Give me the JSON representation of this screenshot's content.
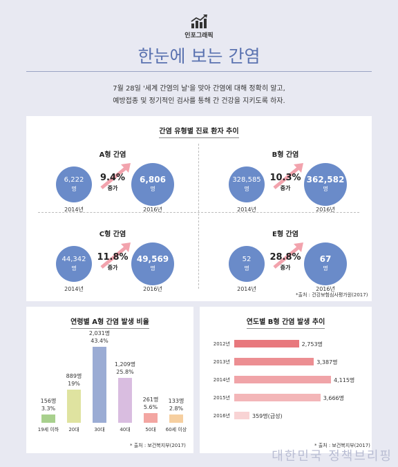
{
  "header": {
    "brand": "인포그래픽",
    "title": "한눈에 보는 간염",
    "intro_line1": "7월 28일 '세계 간염의 날'을 맞아 간염에 대해 정확히 알고,",
    "intro_line2": "예방접종 및 정기적인 검사를 통해 간 건강을 지키도록 하자."
  },
  "colors": {
    "circle": "#6a8bc9",
    "arrow": "#f2a3ad",
    "title": "#5a72b0"
  },
  "chart_data": [
    {
      "type": "table",
      "title": "간염 유형별 진료 환자 추이",
      "increase_label": "증가",
      "unit": "명",
      "panels": [
        {
          "name": "A형 간염",
          "from_year": "2014년",
          "from_value": "6,222",
          "to_year": "2016년",
          "to_value": "6,806",
          "change": "9.4%"
        },
        {
          "name": "B형 간염",
          "from_year": "2014년",
          "from_value": "328,585",
          "to_year": "2016년",
          "to_value": "362,582",
          "change": "10.3%"
        },
        {
          "name": "C형 간염",
          "from_year": "2014년",
          "from_value": "44,342",
          "to_year": "2016년",
          "to_value": "49,569",
          "change": "11.8%"
        },
        {
          "name": "E형 간염",
          "from_year": "2014년",
          "from_value": "52",
          "to_year": "2016년",
          "to_value": "67",
          "change": "28.8%"
        }
      ],
      "source": "*출처 : 건강보험심사평가원(2017)"
    },
    {
      "type": "bar",
      "title": "연령별 A형 간염 발생 비율",
      "categories": [
        "19세 이하",
        "20대",
        "30대",
        "40대",
        "50대",
        "60세 이상"
      ],
      "count_labels": [
        "156명",
        "889명",
        "2,031명",
        "1,209명",
        "261명",
        "133명"
      ],
      "pct_labels": [
        "3.3%",
        "19%",
        "43.4%",
        "25.8%",
        "5.6%",
        "2.8%"
      ],
      "values": [
        156,
        889,
        2031,
        1209,
        261,
        133
      ],
      "colors": [
        "#a8d08d",
        "#dfe3a0",
        "#9bacd4",
        "#d9bde0",
        "#f3a6a2",
        "#f6cfa0"
      ],
      "source": "* 출처 : 보건복지부(2017)"
    },
    {
      "type": "bar",
      "title": "연도별 B형 간염 발생 추이",
      "categories": [
        "2012년",
        "2013년",
        "2014년",
        "2015년",
        "2016년"
      ],
      "value_labels": [
        "2,753명",
        "3,387명",
        "4,115명",
        "3,666명",
        "359명(급성)"
      ],
      "values": [
        2753,
        3387,
        4115,
        3666,
        359
      ],
      "colors": [
        "#e8787d",
        "#ec8e92",
        "#f0a4a8",
        "#f3b6b8",
        "#f8d3d4"
      ],
      "source": "* 출처 : 보건복지부(2017)"
    }
  ],
  "watermark": "대한민국 정책브리핑"
}
